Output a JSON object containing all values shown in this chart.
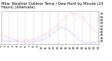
{
  "title": "Milw. Weather Outdoor Temp / Dew Point by Minute (24 Hours) (Alternate)",
  "bg_color": "#ffffff",
  "plot_bg": "#ffffff",
  "grid_color": "#aaaaaa",
  "temp_color": "#dd0000",
  "dew_color": "#0000ee",
  "ylim": [
    20,
    75
  ],
  "yticks": [
    25,
    30,
    35,
    40,
    45,
    50,
    55,
    60,
    65,
    70
  ],
  "num_points": 1440,
  "title_color": "#000000",
  "title_fontsize": 3.8,
  "tick_fontsize": 3.0,
  "temp_data": [
    38,
    37,
    36,
    36,
    35,
    35,
    34,
    34,
    33,
    33,
    33,
    32,
    32,
    32,
    31,
    31,
    31,
    30,
    30,
    30,
    30,
    29,
    29,
    29,
    29,
    29,
    28,
    28,
    28,
    28,
    28,
    28,
    28,
    27,
    27,
    27,
    27,
    27,
    27,
    27,
    27,
    27,
    27,
    27,
    27,
    27,
    27,
    27,
    27,
    27,
    27,
    27,
    27,
    27,
    27,
    27,
    27,
    27,
    28,
    28,
    28,
    28,
    28,
    28,
    29,
    29,
    29,
    29,
    30,
    30,
    30,
    31,
    31,
    31,
    32,
    32,
    33,
    33,
    34,
    34,
    35,
    35,
    36,
    36,
    37,
    37,
    38,
    38,
    39,
    39,
    40,
    40,
    41,
    41,
    42,
    43,
    43,
    44,
    44,
    45,
    46,
    46,
    47,
    48,
    48,
    49,
    50,
    51,
    52,
    52,
    53,
    54,
    55,
    56,
    57,
    57,
    58,
    59,
    60,
    61,
    62,
    63,
    64,
    64,
    65,
    66,
    67,
    67,
    68,
    69,
    69,
    70,
    70,
    70,
    71,
    71,
    71,
    71,
    71,
    71,
    71,
    70,
    70,
    70,
    70,
    70,
    69,
    69,
    69,
    68,
    68,
    68,
    67,
    67,
    66,
    66,
    65,
    65,
    64,
    63,
    63,
    62,
    61,
    60,
    59,
    58,
    57,
    56,
    55,
    54,
    53,
    52,
    51,
    50,
    49,
    48,
    47,
    46,
    46,
    45,
    44,
    43,
    42,
    41,
    40,
    40,
    39,
    38,
    37,
    37
  ],
  "dew_data": [
    28,
    28,
    27,
    27,
    27,
    27,
    26,
    26,
    26,
    26,
    26,
    26,
    25,
    25,
    25,
    25,
    25,
    25,
    25,
    25,
    25,
    25,
    25,
    25,
    25,
    25,
    25,
    25,
    25,
    25,
    25,
    25,
    25,
    24,
    24,
    24,
    24,
    24,
    24,
    24,
    24,
    24,
    24,
    24,
    24,
    24,
    24,
    24,
    24,
    24,
    24,
    24,
    24,
    24,
    24,
    24,
    24,
    24,
    24,
    24,
    24,
    24,
    24,
    24,
    24,
    24,
    25,
    25,
    25,
    25,
    25,
    25,
    25,
    26,
    26,
    26,
    26,
    27,
    27,
    27,
    28,
    28,
    29,
    29,
    30,
    30,
    31,
    31,
    32,
    32,
    33,
    33,
    34,
    35,
    35,
    36,
    36,
    37,
    38,
    38,
    39,
    40,
    40,
    41,
    42,
    42,
    43,
    44,
    44,
    45,
    45,
    46,
    47,
    47,
    47,
    48,
    48,
    48,
    48,
    48,
    48,
    48,
    47,
    47,
    47,
    46,
    46,
    45,
    44,
    44,
    43,
    42,
    42,
    41,
    40,
    39,
    39,
    38,
    37,
    36,
    36,
    35,
    34,
    33,
    32,
    32,
    31,
    30,
    29,
    29,
    28,
    27,
    27,
    26,
    25,
    25,
    24,
    24,
    23,
    23,
    22,
    22,
    22,
    22,
    22,
    22,
    22,
    22,
    22,
    22,
    22,
    22,
    22,
    22,
    23,
    23,
    23,
    23,
    23,
    23,
    23,
    23,
    23,
    24,
    24,
    24,
    24,
    24,
    25,
    25
  ]
}
